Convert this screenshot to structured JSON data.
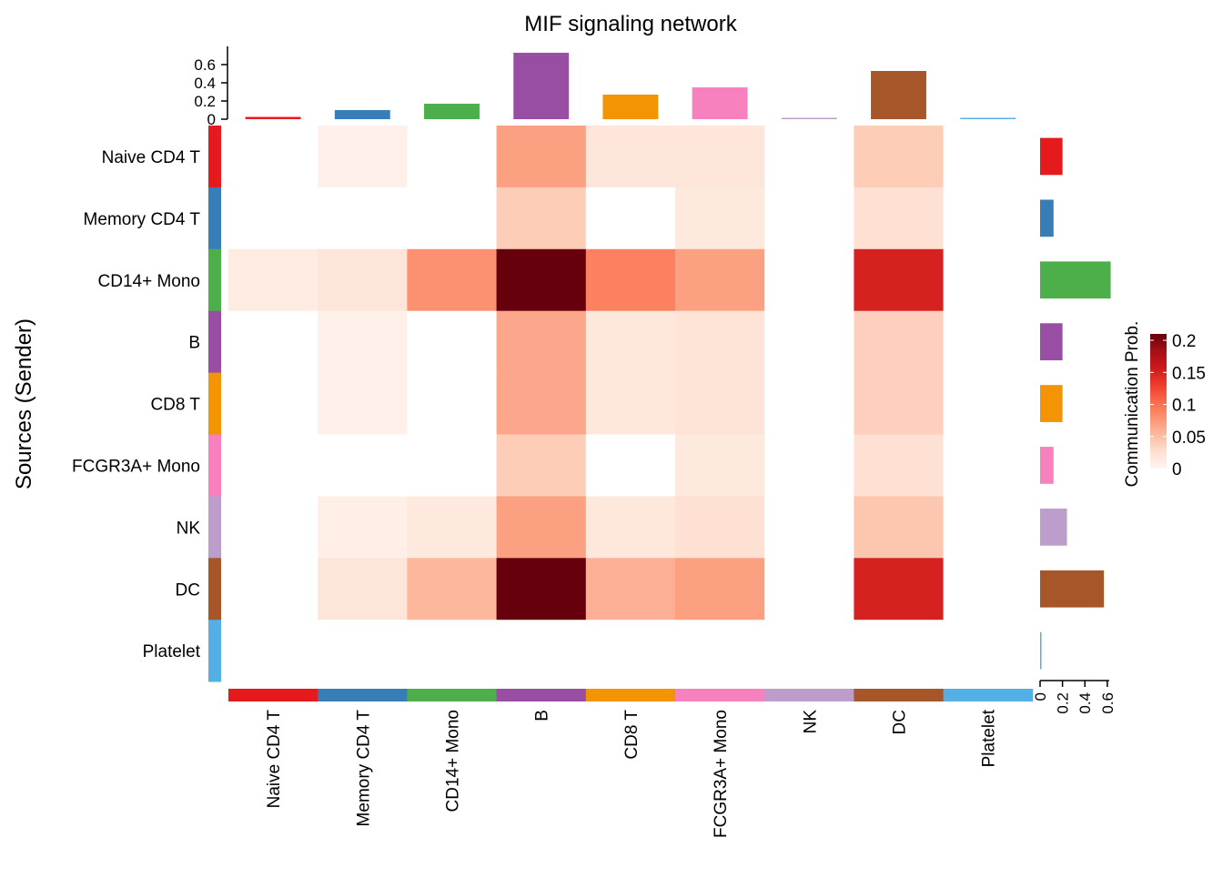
{
  "chart_data": {
    "type": "heatmap",
    "title": "MIF signaling network",
    "ylabel": "Sources (Sender)",
    "legend_title": "Communication Prob.",
    "legend_ticks": [
      "0",
      "0.05",
      "0.1",
      "0.15",
      "0.2"
    ],
    "legend_range": [
      0,
      0.21
    ],
    "rows": [
      "Naive CD4 T",
      "Memory CD4 T",
      "CD14+ Mono",
      "B",
      "CD8 T",
      "FCGR3A+ Mono",
      "NK",
      "DC",
      "Platelet"
    ],
    "cols": [
      "Naive CD4 T",
      "Memory CD4 T",
      "CD14+ Mono",
      "B",
      "CD8 T",
      "FCGR3A+ Mono",
      "NK",
      "DC",
      "Platelet"
    ],
    "group_colors": [
      "#E41A1C",
      "#377EB8",
      "#4DAF4A",
      "#984EA3",
      "#F29403",
      "#F781BF",
      "#BC9DCC",
      "#A65628",
      "#54B0E4"
    ],
    "values": [
      [
        0,
        0.005,
        0,
        0.07,
        0.02,
        0.02,
        0,
        0.04,
        0
      ],
      [
        0,
        0,
        0,
        0.04,
        0,
        0.015,
        0,
        0.025,
        0
      ],
      [
        0.012,
        0.02,
        0.08,
        0.21,
        0.09,
        0.07,
        0,
        0.15,
        0
      ],
      [
        0,
        0.006,
        0,
        0.065,
        0.018,
        0.022,
        0,
        0.038,
        0
      ],
      [
        0,
        0.006,
        0,
        0.065,
        0.018,
        0.022,
        0,
        0.038,
        0
      ],
      [
        0,
        0,
        0,
        0.04,
        0,
        0.015,
        0,
        0.025,
        0
      ],
      [
        0,
        0.008,
        0.015,
        0.07,
        0.018,
        0.025,
        0,
        0.045,
        0
      ],
      [
        0,
        0.02,
        0.055,
        0.21,
        0.06,
        0.07,
        0,
        0.15,
        0
      ],
      [
        0,
        0,
        0,
        0,
        0,
        0,
        0,
        0,
        0
      ]
    ],
    "top_bar": {
      "values": [
        0.025,
        0.1,
        0.17,
        0.73,
        0.27,
        0.35,
        0.015,
        0.53,
        0.01
      ],
      "ticks": [
        "0",
        "0.2",
        "0.4",
        "0.6"
      ],
      "ylim": [
        0,
        0.75
      ]
    },
    "right_bar": {
      "values": [
        0.2,
        0.12,
        0.63,
        0.2,
        0.2,
        0.12,
        0.24,
        0.57,
        0.01
      ],
      "ticks": [
        "0",
        "0.2",
        "0.4",
        "0.6"
      ],
      "xlim": [
        0,
        0.65
      ]
    },
    "colormap": [
      "#FFF5F0",
      "#FEE0D2",
      "#FCBBA1",
      "#FC9272",
      "#FB6A4A",
      "#EF3B2C",
      "#CB181D",
      "#A50F15",
      "#67000D"
    ]
  }
}
